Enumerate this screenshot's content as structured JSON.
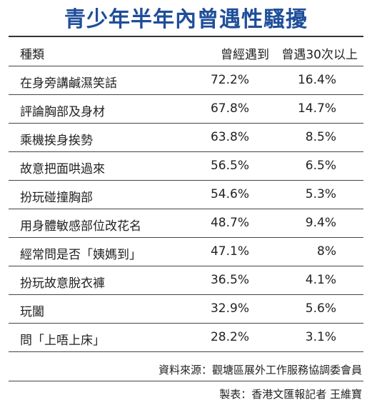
{
  "header": {
    "title": "青少年半年內曾遇性騷擾"
  },
  "table": {
    "columns": [
      "種類",
      "曾經遇到",
      "曾遇30次以上"
    ],
    "rows": [
      [
        "在身旁講鹹濕笑話",
        "72.2%",
        "16.4%"
      ],
      [
        "評論胸部及身材",
        "67.8%",
        "14.7%"
      ],
      [
        "乘機挨身挨勢",
        "63.8%",
        "8.5%"
      ],
      [
        "故意把面哄過來",
        "56.5%",
        "6.5%"
      ],
      [
        "扮玩碰撞胸部",
        "54.6%",
        "5.3%"
      ],
      [
        "用身體敏感部位改花名",
        "48.7%",
        "9.4%"
      ],
      [
        "經常問是否「姨媽到」",
        "47.1%",
        "8%"
      ],
      [
        "扮玩故意脫衣褲",
        "36.5%",
        "4.1%"
      ],
      [
        "玩闔",
        "32.9%",
        "5.6%"
      ],
      [
        "問「上唔上床」",
        "28.2%",
        "3.1%"
      ]
    ]
  },
  "footer": {
    "source": "資料來源：觀塘區展外工作服務協調委會員",
    "credit": "製表：香港文匯報記者 王維寶"
  }
}
